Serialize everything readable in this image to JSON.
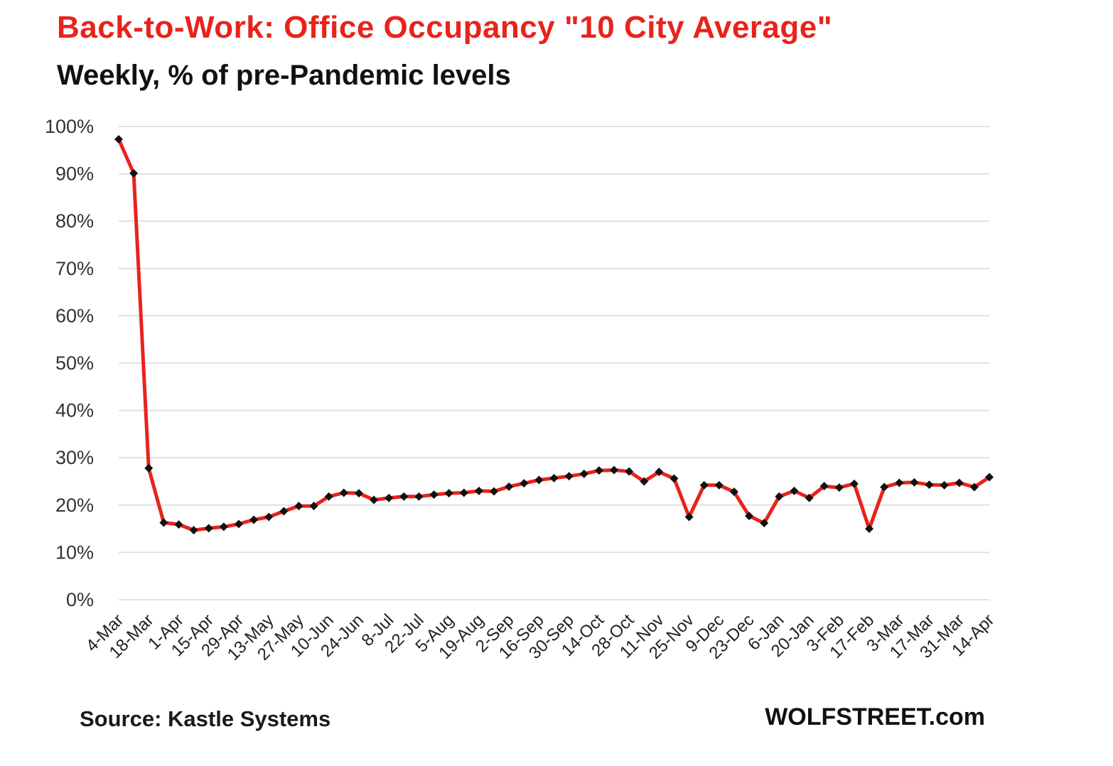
{
  "header": {
    "title": "Back-to-Work:  Office Occupancy  \"10 City Average\"",
    "subtitle": "Weekly, % of pre-Pandemic levels"
  },
  "footer": {
    "source": "Source: Kastle Systems",
    "brand": "WOLFSTREET.com"
  },
  "colors": {
    "line": "#e8231c",
    "marker": "#111111",
    "grid": "#d9d9d9"
  },
  "chart_data": {
    "type": "line",
    "title": "Back-to-Work:  Office Occupancy  \"10 City Average\"",
    "subtitle": "Weekly, % of pre-Pandemic levels",
    "xlabel": "",
    "ylabel": "",
    "ylim": [
      0,
      100
    ],
    "yticks": [
      "0%",
      "10%",
      "20%",
      "30%",
      "40%",
      "50%",
      "60%",
      "70%",
      "80%",
      "90%",
      "100%"
    ],
    "grid": true,
    "legend": "none",
    "xticks": [
      "4-Mar",
      "18-Mar",
      "1-Apr",
      "15-Apr",
      "29-Apr",
      "13-May",
      "27-May",
      "10-Jun",
      "24-Jun",
      "8-Jul",
      "22-Jul",
      "5-Aug",
      "19-Aug",
      "2-Sep",
      "16-Sep",
      "30-Sep",
      "14-Oct",
      "28-Oct",
      "11-Nov",
      "25-Nov",
      "9-Dec",
      "23-Dec",
      "6-Jan",
      "20-Jan",
      "3-Feb",
      "17-Feb",
      "3-Mar",
      "17-Mar",
      "31-Mar",
      "14-Apr"
    ],
    "x": [
      "4-Mar",
      "11-Mar",
      "18-Mar",
      "25-Mar",
      "1-Apr",
      "8-Apr",
      "15-Apr",
      "22-Apr",
      "29-Apr",
      "6-May",
      "13-May",
      "20-May",
      "27-May",
      "3-Jun",
      "10-Jun",
      "17-Jun",
      "24-Jun",
      "1-Jul",
      "8-Jul",
      "15-Jul",
      "22-Jul",
      "29-Jul",
      "5-Aug",
      "12-Aug",
      "19-Aug",
      "26-Aug",
      "2-Sep",
      "9-Sep",
      "16-Sep",
      "23-Sep",
      "30-Sep",
      "7-Oct",
      "14-Oct",
      "21-Oct",
      "28-Oct",
      "4-Nov",
      "11-Nov",
      "18-Nov",
      "25-Nov",
      "2-Dec",
      "9-Dec",
      "16-Dec",
      "23-Dec",
      "30-Dec",
      "6-Jan",
      "13-Jan",
      "20-Jan",
      "27-Jan",
      "3-Feb",
      "10-Feb",
      "17-Feb",
      "24-Feb",
      "3-Mar",
      "10-Mar",
      "17-Mar",
      "24-Mar",
      "31-Mar",
      "7-Apr",
      "14-Apr"
    ],
    "series": [
      {
        "values": [
          97.3,
          90.1,
          27.8,
          16.3,
          15.9,
          14.7,
          15.1,
          15.4,
          16.0,
          16.9,
          17.5,
          18.7,
          19.8,
          19.8,
          21.8,
          22.6,
          22.5,
          21.1,
          21.5,
          21.8,
          21.8,
          22.2,
          22.5,
          22.6,
          23.0,
          22.9,
          23.9,
          24.6,
          25.3,
          25.7,
          26.1,
          26.6,
          27.3,
          27.4,
          27.1,
          25.0,
          27.0,
          25.6,
          17.5,
          24.2,
          24.2,
          22.8,
          17.7,
          16.2,
          21.8,
          23.0,
          21.5,
          24.0,
          23.7,
          24.5,
          15.0,
          23.8,
          24.7,
          24.8,
          24.3,
          24.2,
          24.7,
          23.8,
          25.9
        ]
      }
    ]
  }
}
